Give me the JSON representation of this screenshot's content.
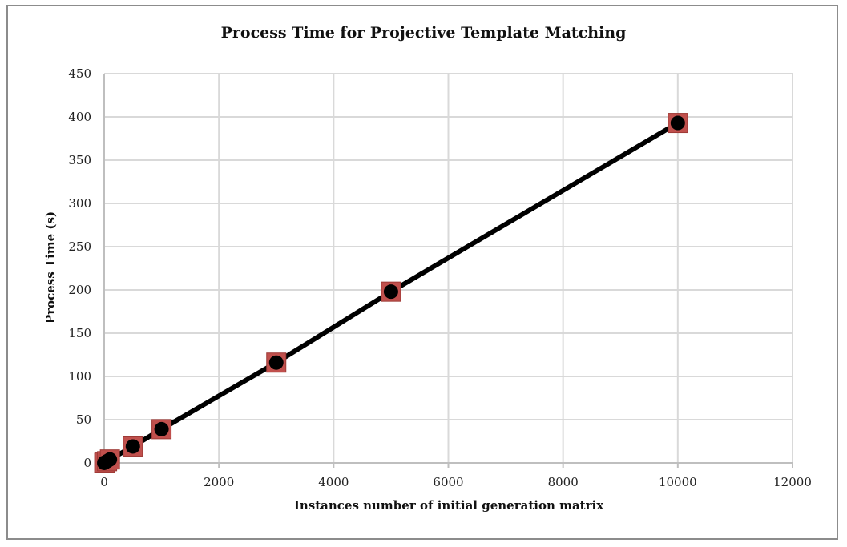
{
  "chart_data": {
    "type": "line",
    "title": "Process Time for Projective Template Matching",
    "xlabel": "Instances number of initial generation matrix",
    "ylabel": "Process Time (s)",
    "xlim": [
      0,
      12000
    ],
    "ylim": [
      0,
      450
    ],
    "xticks": [
      0,
      2000,
      4000,
      6000,
      8000,
      10000,
      12000
    ],
    "yticks": [
      0,
      50,
      100,
      150,
      200,
      250,
      300,
      350,
      400,
      450
    ],
    "grid": true,
    "legend": "none",
    "series": [
      {
        "x": [
          1,
          10,
          50,
          100,
          500,
          1000,
          3000,
          5000,
          10000
        ],
        "values": [
          0.05,
          0.4,
          2,
          4,
          19,
          39,
          116,
          198,
          393
        ],
        "line_color": "#000000",
        "marker_color": "#000000",
        "marker_box_color": "#c0504d"
      }
    ]
  }
}
